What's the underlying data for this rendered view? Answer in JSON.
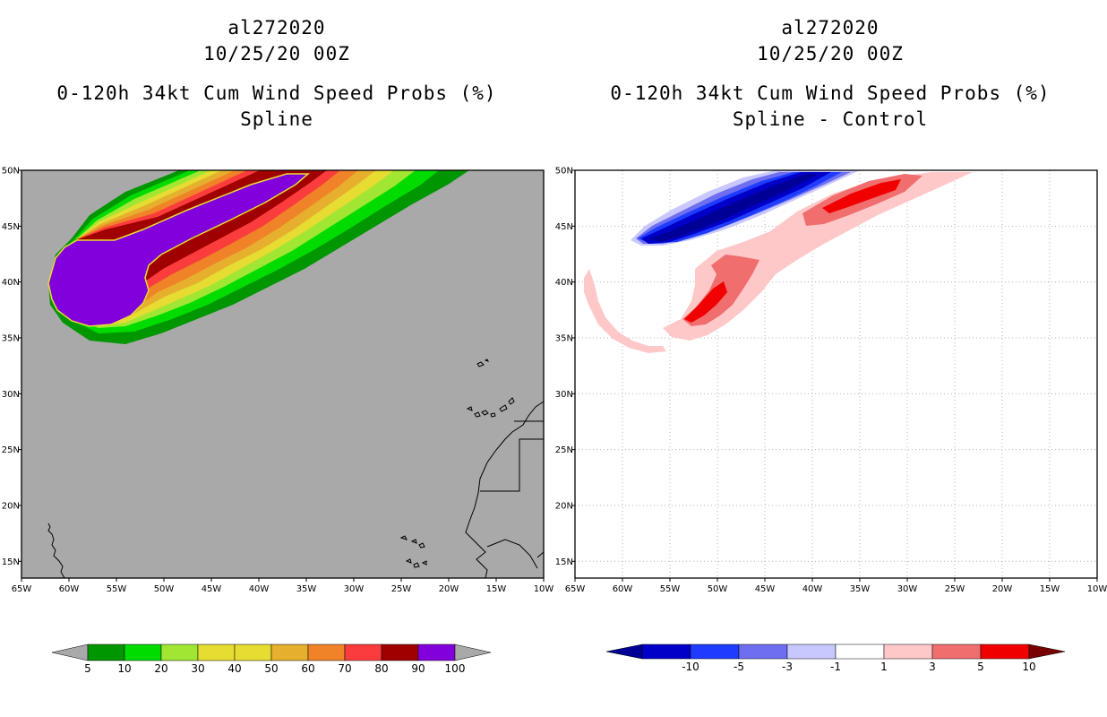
{
  "left_panel": {
    "storm_id": "al272020",
    "datetime": "10/25/20 00Z",
    "product": "0-120h 34kt Cum Wind Speed Probs (%)",
    "variant": "Spline",
    "background_color": "#a9a9a9",
    "colorbar": {
      "labels": [
        "5",
        "10",
        "20",
        "30",
        "40",
        "50",
        "60",
        "70",
        "80",
        "90",
        "100"
      ],
      "colors": [
        "#009600",
        "#00dc00",
        "#a0e632",
        "#e6dc32",
        "#e6dc32",
        "#e6af2d",
        "#f08228",
        "#fa3c3c",
        "#a00000",
        "#8200dc"
      ],
      "end_color": "#a9a9a9"
    }
  },
  "right_panel": {
    "storm_id": "al272020",
    "datetime": "10/25/20 00Z",
    "product": "0-120h 34kt Cum Wind Speed Probs (%)",
    "variant": "Spline - Control",
    "background_color": "#ffffff",
    "colorbar": {
      "labels": [
        "-10",
        "-5",
        "-3",
        "-1",
        "1",
        "3",
        "5",
        "10"
      ],
      "colors": [
        "#0000c8",
        "#1e3cff",
        "#6e6ef0",
        "#c8c8ff",
        "#ffffff",
        "#ffc8c8",
        "#f06e6e",
        "#f00000"
      ],
      "end_low": "#000096",
      "end_high": "#780000"
    }
  },
  "axes": {
    "lon_labels": [
      "65W",
      "60W",
      "55W",
      "50W",
      "45W",
      "40W",
      "35W",
      "30W",
      "25W",
      "20W",
      "15W",
      "10W"
    ],
    "lat_labels": [
      "50N",
      "45N",
      "40N",
      "35N",
      "30N",
      "25N",
      "20N",
      "15N"
    ],
    "lon_range": [
      -65,
      -10
    ],
    "lat_range": [
      13.5,
      50
    ]
  }
}
